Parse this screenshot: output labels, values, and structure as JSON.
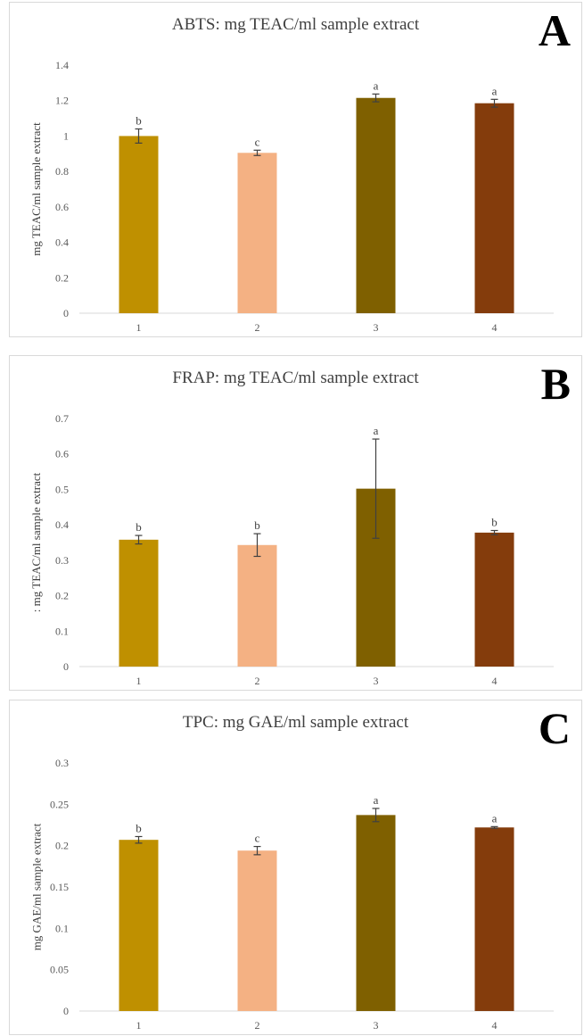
{
  "chart_data": [
    {
      "type": "bar",
      "panel_letter": "A",
      "title": "ABTS: mg TEAC/ml sample extract",
      "xlabel": "",
      "ylabel": "mg TEAC/ml sample extract",
      "categories": [
        "1",
        "2",
        "3",
        "4"
      ],
      "values": [
        1.0,
        0.905,
        1.215,
        1.185
      ],
      "errors": [
        0.04,
        0.015,
        0.022,
        0.022
      ],
      "significance": [
        "b",
        "c",
        "a",
        "a"
      ],
      "ylim": [
        0,
        1.4
      ],
      "yticks": [
        0,
        0.2,
        0.4,
        0.6,
        0.8,
        1,
        1.2,
        1.4
      ],
      "ytick_labels": [
        "0",
        "0.2",
        "0.4",
        "0.6",
        "0.8",
        "1",
        "1.2",
        "1.4"
      ],
      "colors": [
        "#bf9000",
        "#f4b183",
        "#7f6000",
        "#843c0c"
      ],
      "grid": false
    },
    {
      "type": "bar",
      "panel_letter": "B",
      "title": "FRAP: mg TEAC/ml sample extract",
      "xlabel": "",
      "ylabel": ": mg TEAC/ml sample extract",
      "categories": [
        "1",
        "2",
        "3",
        "4"
      ],
      "values": [
        0.358,
        0.343,
        0.502,
        0.378
      ],
      "errors": [
        0.012,
        0.032,
        0.14,
        0.006
      ],
      "significance": [
        "b",
        "b",
        "a",
        "b"
      ],
      "ylim": [
        0,
        0.7
      ],
      "yticks": [
        0,
        0.1,
        0.2,
        0.3,
        0.4,
        0.5,
        0.6,
        0.7
      ],
      "ytick_labels": [
        "0",
        "0.1",
        "0.2",
        "0.3",
        "0.4",
        "0.5",
        "0.6",
        "0.7"
      ],
      "colors": [
        "#bf9000",
        "#f4b183",
        "#7f6000",
        "#843c0c"
      ],
      "grid": false
    },
    {
      "type": "bar",
      "panel_letter": "C",
      "title": "TPC: mg GAE/ml sample extract",
      "xlabel": "",
      "ylabel": "mg GAE/ml sample extract",
      "categories": [
        "1",
        "2",
        "3",
        "4"
      ],
      "values": [
        0.207,
        0.194,
        0.237,
        0.222
      ],
      "errors": [
        0.004,
        0.005,
        0.008,
        0.001
      ],
      "significance": [
        "b",
        "c",
        "a",
        "a"
      ],
      "ylim": [
        0,
        0.3
      ],
      "yticks": [
        0,
        0.05,
        0.1,
        0.15,
        0.2,
        0.25,
        0.3
      ],
      "ytick_labels": [
        "0",
        "0.05",
        "0.1",
        "0.15",
        "0.2",
        "0.25",
        "0.3"
      ],
      "colors": [
        "#bf9000",
        "#f4b183",
        "#7f6000",
        "#843c0c"
      ],
      "grid": false
    }
  ]
}
